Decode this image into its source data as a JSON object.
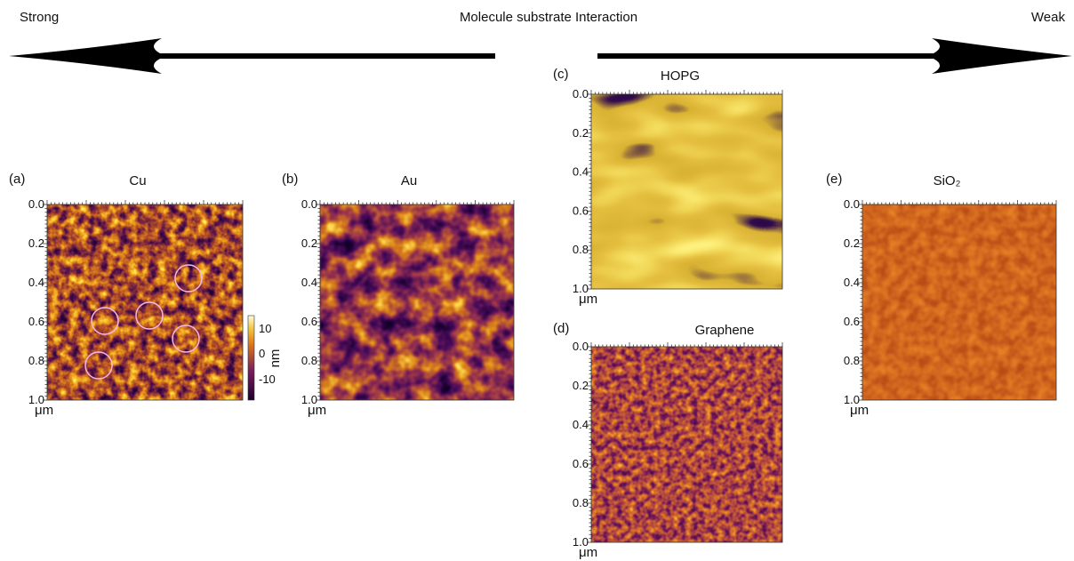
{
  "header": {
    "left": "Strong",
    "title": "Molecule substrate Interaction",
    "right": "Weak"
  },
  "panels": [
    {
      "label": "(a)",
      "title": "Cu",
      "yticks": [
        "0.0",
        "0.2",
        "0.4",
        "0.6",
        "0.8",
        "1.0"
      ],
      "unit": "μm",
      "colorbar": {
        "ticks": [
          "10",
          "0",
          "-10"
        ],
        "unit": "nm"
      }
    },
    {
      "label": "(b)",
      "title": "Au",
      "yticks": [
        "0.0",
        "0.2",
        "0.4",
        "0.6",
        "0.8",
        "1.0"
      ],
      "unit": "μm"
    },
    {
      "label": "(c)",
      "title": "HOPG",
      "yticks": [
        "0.0",
        "0.2",
        "0.4",
        "0.6",
        "0.8",
        "1.0"
      ],
      "unit": "μm"
    },
    {
      "label": "(d)",
      "title": "Graphene",
      "yticks": [
        "0.0",
        "0.2",
        "0.4",
        "0.6",
        "0.8",
        "1.0"
      ],
      "unit": "μm"
    },
    {
      "label": "(e)",
      "title": "SiO₂",
      "yticks": [
        "0.0",
        "0.2",
        "0.4",
        "0.6",
        "0.8",
        "1.0"
      ],
      "unit": "μm"
    }
  ]
}
